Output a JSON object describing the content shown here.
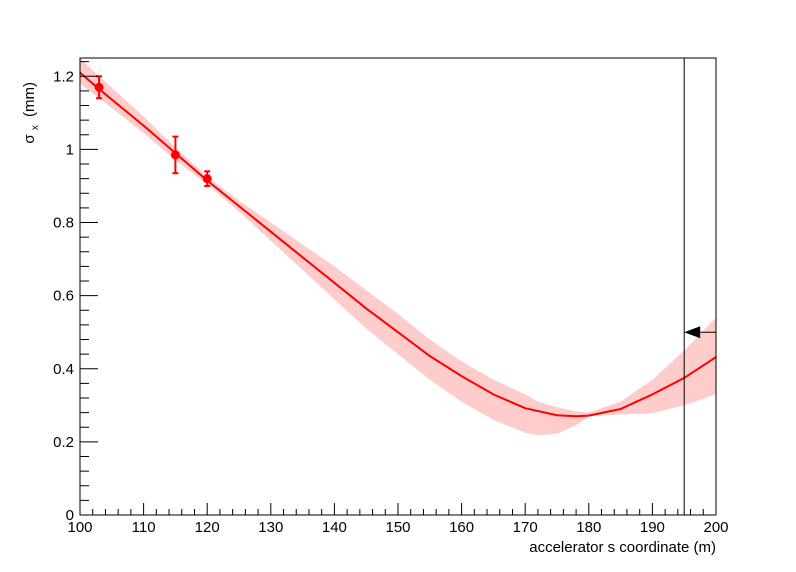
{
  "chart_data": {
    "type": "line",
    "xlabel": "accelerator s coordinate (m)",
    "ylabel": "σ_x (mm)",
    "ylabel_main": "σ",
    "ylabel_sub": "x",
    "ylabel_unit": "(mm)",
    "xlim": [
      100,
      200
    ],
    "ylim": [
      0,
      1.25
    ],
    "x_ticks": [
      100,
      110,
      120,
      130,
      140,
      150,
      160,
      170,
      180,
      190,
      200
    ],
    "y_ticks": [
      0,
      0.2,
      0.4,
      0.6,
      0.8,
      1,
      1.2
    ],
    "x_tick_labels": [
      "100",
      "110",
      "120",
      "130",
      "140",
      "150",
      "160",
      "170",
      "180",
      "190",
      "200"
    ],
    "y_tick_labels": [
      "0",
      "0.2",
      "0.4",
      "0.6",
      "0.8",
      "1",
      "1.2"
    ],
    "grid": false,
    "series": [
      {
        "kind": "fit-curve",
        "color": "#ff0000",
        "x": [
          100,
          103,
          110,
          115,
          120,
          125,
          130,
          135,
          140,
          145,
          150,
          155,
          160,
          165,
          170,
          175,
          178,
          180,
          185,
          190,
          195,
          200
        ],
        "y": [
          1.21,
          1.165,
          1.065,
          0.99,
          0.915,
          0.845,
          0.775,
          0.705,
          0.635,
          0.565,
          0.5,
          0.435,
          0.38,
          0.33,
          0.292,
          0.273,
          0.27,
          0.272,
          0.29,
          0.33,
          0.375,
          0.432
        ]
      },
      {
        "kind": "uncertainty-band",
        "color": "#ffcccc",
        "x": [
          100,
          103,
          110,
          115,
          120,
          125,
          130,
          135,
          140,
          145,
          150,
          155,
          160,
          165,
          170,
          172,
          175,
          178,
          180,
          185,
          190,
          195,
          200
        ],
        "upper": [
          1.25,
          1.2,
          1.09,
          1.005,
          0.925,
          0.86,
          0.8,
          0.74,
          0.68,
          0.615,
          0.55,
          0.48,
          0.42,
          0.37,
          0.33,
          0.31,
          0.295,
          0.283,
          0.28,
          0.31,
          0.37,
          0.45,
          0.54
        ],
        "lower": [
          1.18,
          1.14,
          1.045,
          0.97,
          0.905,
          0.83,
          0.75,
          0.67,
          0.59,
          0.51,
          0.44,
          0.37,
          0.31,
          0.26,
          0.225,
          0.218,
          0.222,
          0.245,
          0.27,
          0.275,
          0.278,
          0.3,
          0.33
        ]
      },
      {
        "kind": "measurements",
        "color": "#ff0000",
        "points": [
          {
            "x": 103,
            "y": 1.17,
            "err": 0.03
          },
          {
            "x": 115,
            "y": 0.985,
            "err": 0.05
          },
          {
            "x": 120,
            "y": 0.92,
            "err": 0.02
          }
        ]
      }
    ],
    "annotations": {
      "vertical_line_x": 195,
      "arrow": {
        "x_from": 200,
        "x_to": 195,
        "y": 0.5,
        "direction": "left"
      }
    }
  }
}
